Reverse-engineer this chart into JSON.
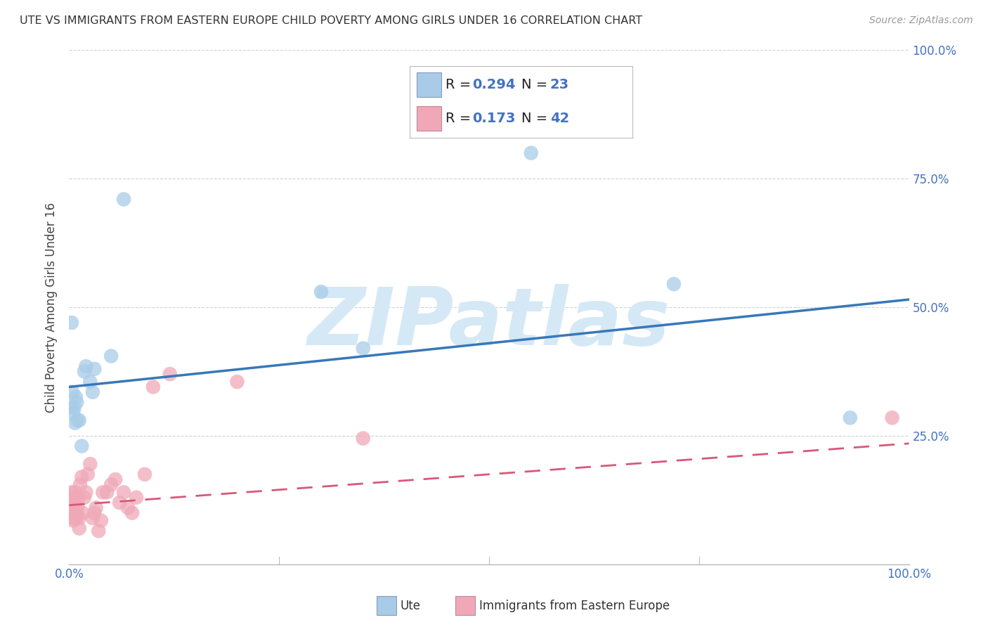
{
  "title": "UTE VS IMMIGRANTS FROM EASTERN EUROPE CHILD POVERTY AMONG GIRLS UNDER 16 CORRELATION CHART",
  "source": "Source: ZipAtlas.com",
  "ylabel": "Child Poverty Among Girls Under 16",
  "legend_label1": "Ute",
  "legend_label2": "Immigrants from Eastern Europe",
  "R1": "0.294",
  "N1": "23",
  "R2": "0.173",
  "N2": "42",
  "blue_scatter": "#a8cce8",
  "blue_line": "#3878b8",
  "pink_scatter": "#f0a8b8",
  "pink_line": "#d85878",
  "watermark_color": "#d5e8f5",
  "background_color": "#ffffff",
  "grid_color": "#cccccc",
  "title_color": "#333333",
  "axis_label_color": "#4472c4",
  "ute_x": [
    0.003,
    0.004,
    0.005,
    0.006,
    0.007,
    0.008,
    0.009,
    0.01,
    0.012,
    0.015,
    0.018,
    0.02,
    0.025,
    0.028,
    0.03,
    0.05,
    0.065,
    0.3,
    0.35,
    0.55,
    0.72,
    0.93,
    0.003
  ],
  "ute_y": [
    0.47,
    0.335,
    0.295,
    0.305,
    0.275,
    0.325,
    0.315,
    0.28,
    0.28,
    0.23,
    0.375,
    0.385,
    0.355,
    0.335,
    0.38,
    0.405,
    0.71,
    0.53,
    0.42,
    0.8,
    0.545,
    0.285,
    0.305
  ],
  "immig_x": [
    0.001,
    0.002,
    0.003,
    0.004,
    0.005,
    0.005,
    0.006,
    0.007,
    0.008,
    0.008,
    0.009,
    0.01,
    0.011,
    0.012,
    0.012,
    0.013,
    0.015,
    0.016,
    0.018,
    0.02,
    0.022,
    0.025,
    0.028,
    0.03,
    0.032,
    0.035,
    0.038,
    0.04,
    0.045,
    0.05,
    0.055,
    0.06,
    0.065,
    0.07,
    0.075,
    0.08,
    0.09,
    0.1,
    0.12,
    0.2,
    0.35,
    0.98
  ],
  "immig_y": [
    0.115,
    0.1,
    0.14,
    0.09,
    0.1,
    0.085,
    0.13,
    0.14,
    0.12,
    0.09,
    0.1,
    0.11,
    0.13,
    0.09,
    0.07,
    0.155,
    0.17,
    0.1,
    0.13,
    0.14,
    0.175,
    0.195,
    0.09,
    0.1,
    0.11,
    0.065,
    0.085,
    0.14,
    0.14,
    0.155,
    0.165,
    0.12,
    0.14,
    0.11,
    0.1,
    0.13,
    0.175,
    0.345,
    0.37,
    0.355,
    0.245,
    0.285
  ],
  "ytick_values": [
    0.0,
    0.25,
    0.5,
    0.75,
    1.0
  ],
  "ytick_labels": [
    "",
    "25.0%",
    "50.0%",
    "75.0%",
    "100.0%"
  ],
  "xtick_values": [
    0.0,
    0.25,
    0.5,
    0.75,
    1.0
  ],
  "xtick_labels": [
    "0.0%",
    "",
    "",
    "",
    "100.0%"
  ],
  "blue_line_start_y": 0.345,
  "blue_line_end_y": 0.515,
  "pink_line_start_y": 0.115,
  "pink_line_end_y": 0.235
}
